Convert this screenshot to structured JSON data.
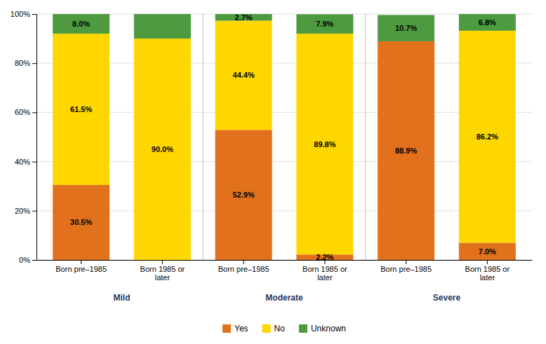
{
  "chart_data": {
    "type": "bar",
    "stacked": true,
    "data_labels": true,
    "grid": true,
    "legend": "bottom",
    "categories": [
      "Born pre–1985",
      "Born 1985 or\nlater",
      "Born pre–1985",
      "Born 1985 or\nlater",
      "Born pre–1985",
      "Born 1985 or\nlater"
    ],
    "groups": [
      "Mild",
      "Moderate",
      "Severe"
    ],
    "group_color": "#1F3864",
    "series": [
      {
        "name": "Yes",
        "color": "#E2711D",
        "values": [
          30.5,
          0.0,
          52.9,
          2.2,
          88.9,
          7.0
        ],
        "value_labels": [
          "30.5%",
          null,
          "52.9%",
          "2.2%",
          "88.9%",
          "7.0%"
        ]
      },
      {
        "name": "No",
        "color": "#FFD700",
        "values": [
          61.5,
          90.0,
          44.4,
          89.8,
          0.0,
          86.2
        ],
        "value_labels": [
          "61.5%",
          "90.0%",
          "44.4%",
          "89.8%",
          null,
          "86.2%"
        ]
      },
      {
        "name": "Unknown",
        "color": "#4E9A41",
        "values": [
          8.0,
          10.0,
          2.7,
          7.9,
          10.7,
          6.8
        ],
        "value_labels": [
          "8.0%",
          null,
          "2.7%",
          "7.9%",
          "10.7%",
          "6.8%"
        ]
      }
    ],
    "ylim": [
      0,
      100
    ],
    "yticks": [
      {
        "value": 0,
        "label": "0%"
      },
      {
        "value": 20,
        "label": "20%"
      },
      {
        "value": 40,
        "label": "40%"
      },
      {
        "value": 60,
        "label": "60%"
      },
      {
        "value": 80,
        "label": "80%"
      },
      {
        "value": 100,
        "label": "100%"
      }
    ]
  }
}
